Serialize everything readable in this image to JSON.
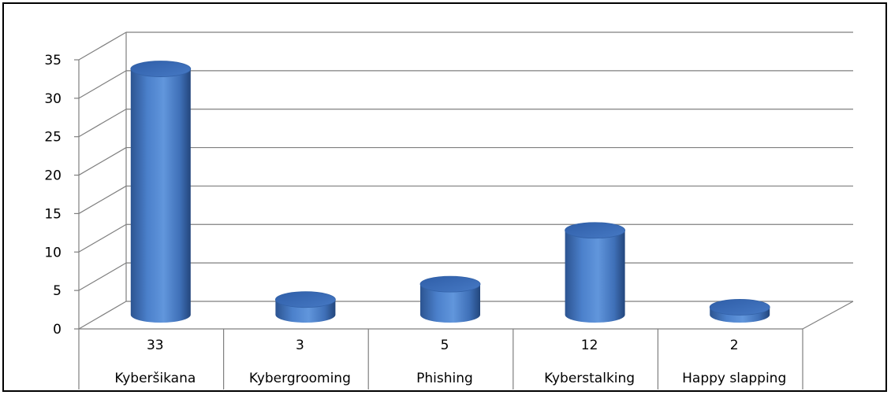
{
  "chart_data": {
    "type": "bar",
    "style": "3d-cylinder",
    "categories": [
      "Kyberšikana",
      "Kybergrooming",
      "Phishing",
      "Kyberstalking",
      "Happy slapping"
    ],
    "values": [
      33,
      3,
      5,
      12,
      2
    ],
    "data_labels": [
      "33",
      "3",
      "5",
      "12",
      "2"
    ],
    "title": "",
    "xlabel": "",
    "ylabel": "",
    "ylim": [
      0,
      35
    ],
    "yticks": [
      0,
      5,
      10,
      15,
      20,
      25,
      30,
      35
    ],
    "grid": true,
    "legend": "none",
    "bar_color": "#4677be",
    "bar_top_color": "#3d6db5",
    "grid_color": "#7f7f7f"
  }
}
